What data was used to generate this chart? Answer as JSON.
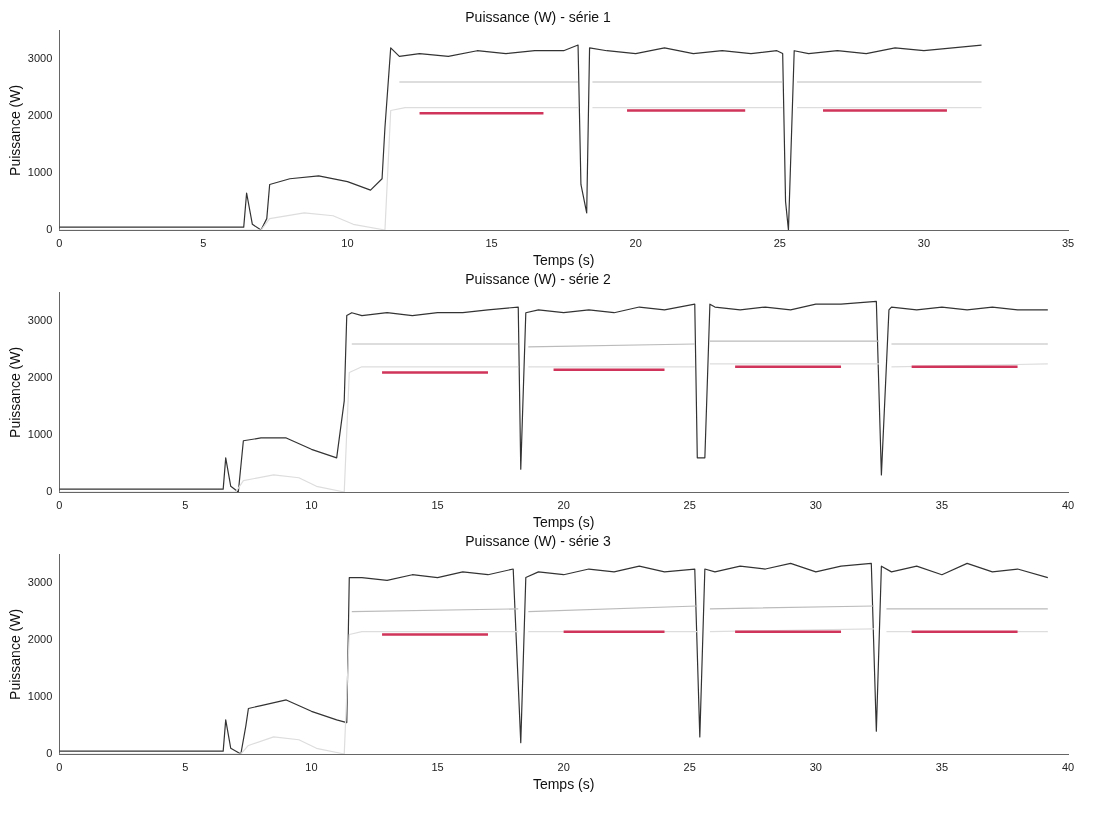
{
  "chart_data": [
    {
      "type": "line",
      "title": "Puissance (W) - série 1",
      "xlabel": "Temps (s)",
      "ylabel": "Puissance (W)",
      "xlim": [
        0,
        35
      ],
      "xticks": [
        0,
        5,
        10,
        15,
        20,
        25,
        30,
        35
      ],
      "ylim": [
        0,
        3500
      ],
      "yticks": [
        0,
        1000,
        2000,
        3000
      ],
      "grid": false,
      "legend": false,
      "marker": "none",
      "series": [
        {
          "color": "#333333",
          "x": [
            0,
            6.4,
            6.5,
            6.7,
            7.0,
            7.2,
            7.3,
            8,
            9,
            10,
            10.8,
            11.2,
            11.3,
            11.5,
            11.8,
            12.5,
            13.5,
            14.5,
            15.5,
            16.5,
            17.5,
            18.0,
            18.1,
            18.3,
            18.4,
            19,
            20,
            21,
            22,
            23,
            24,
            24.9,
            25.1,
            25.2,
            25.3,
            25.5,
            26,
            27,
            28,
            29,
            30,
            31,
            32
          ],
          "values": [
            50,
            50,
            650,
            100,
            0,
            200,
            800,
            900,
            950,
            850,
            700,
            900,
            1800,
            3200,
            3050,
            3100,
            3050,
            3150,
            3100,
            3150,
            3150,
            3250,
            800,
            300,
            3200,
            3150,
            3100,
            3200,
            3100,
            3150,
            3100,
            3150,
            3100,
            500,
            0,
            3150,
            3100,
            3150,
            3100,
            3200,
            3150,
            3200,
            3250
          ]
        },
        {
          "color": "#bbbbbb",
          "x": [
            11.8,
            18.0,
            18.2,
            18.5,
            25.1,
            25.3,
            25.6,
            32
          ],
          "values": [
            2600,
            2600,
            null,
            2600,
            2600,
            null,
            2600,
            2600
          ]
        },
        {
          "color": "#dddddd",
          "x": [
            0,
            7,
            7.3,
            8.5,
            9.5,
            10.2,
            11.3,
            11.5,
            12,
            18,
            18.2,
            18.5,
            25.1,
            25.3,
            25.6,
            32
          ],
          "values": [
            0,
            0,
            200,
            300,
            250,
            100,
            0,
            2100,
            2150,
            2150,
            null,
            2150,
            2150,
            null,
            2150,
            2150
          ]
        },
        {
          "color": "#d0345a",
          "x": [
            12.5,
            16.8,
            17,
            19.7,
            23.8,
            24,
            26.5,
            30.8
          ],
          "values": [
            2050,
            2050,
            null,
            2100,
            2100,
            null,
            2100,
            2100
          ]
        }
      ]
    },
    {
      "type": "line",
      "title": "Puissance (W) - série 2",
      "xlabel": "Temps (s)",
      "ylabel": "Puissance (W)",
      "xlim": [
        0,
        40
      ],
      "xticks": [
        0,
        5,
        10,
        15,
        20,
        25,
        30,
        35,
        40
      ],
      "ylim": [
        0,
        3500
      ],
      "yticks": [
        0,
        1000,
        2000,
        3000
      ],
      "grid": false,
      "legend": false,
      "marker": "none",
      "series": [
        {
          "color": "#333333",
          "x": [
            0,
            6.5,
            6.6,
            6.8,
            7.1,
            7.3,
            8,
            9,
            10,
            11,
            11.3,
            11.4,
            11.6,
            12,
            13,
            14,
            15,
            16,
            17,
            18.2,
            18.3,
            18.5,
            19,
            20,
            21,
            22,
            23,
            24,
            25.2,
            25.3,
            25.6,
            25.8,
            26,
            27,
            28,
            29,
            30,
            31,
            32.4,
            32.6,
            32.9,
            33,
            34,
            35,
            36,
            37,
            38,
            39.2
          ],
          "values": [
            50,
            50,
            600,
            100,
            0,
            900,
            950,
            950,
            750,
            600,
            1600,
            3100,
            3150,
            3100,
            3150,
            3100,
            3150,
            3150,
            3200,
            3250,
            400,
            3150,
            3200,
            3150,
            3200,
            3150,
            3250,
            3200,
            3300,
            600,
            600,
            3300,
            3250,
            3200,
            3250,
            3200,
            3300,
            3300,
            3350,
            300,
            3200,
            3250,
            3200,
            3250,
            3200,
            3250,
            3200,
            3200
          ]
        },
        {
          "color": "#bbbbbb",
          "x": [
            11.6,
            18.2,
            18.4,
            18.6,
            25.2,
            25.4,
            25.8,
            32.5,
            32.7,
            33,
            39.2
          ],
          "values": [
            2600,
            2600,
            null,
            2550,
            2600,
            null,
            2650,
            2650,
            null,
            2600,
            2600
          ]
        },
        {
          "color": "#dddddd",
          "x": [
            0,
            7,
            7.3,
            8.5,
            9.5,
            10.2,
            11.3,
            11.5,
            12,
            18.2,
            18.4,
            18.6,
            25.2,
            25.4,
            25.8,
            32.5,
            32.7,
            33,
            39.2
          ],
          "values": [
            0,
            0,
            200,
            300,
            250,
            100,
            0,
            2100,
            2200,
            2200,
            null,
            2200,
            2200,
            null,
            2250,
            2250,
            null,
            2200,
            2250
          ]
        },
        {
          "color": "#d0345a",
          "x": [
            12.8,
            17,
            17.2,
            19.6,
            24,
            24.2,
            26.8,
            31,
            31.2,
            33.8,
            38
          ],
          "values": [
            2100,
            2100,
            null,
            2150,
            2150,
            null,
            2200,
            2200,
            null,
            2200,
            2200
          ]
        }
      ]
    },
    {
      "type": "line",
      "title": "Puissance (W) - série 3",
      "xlabel": "Temps (s)",
      "ylabel": "Puissance (W)",
      "xlim": [
        0,
        40
      ],
      "xticks": [
        0,
        5,
        10,
        15,
        20,
        25,
        30,
        35,
        40
      ],
      "ylim": [
        0,
        3500
      ],
      "yticks": [
        0,
        1000,
        2000,
        3000
      ],
      "grid": false,
      "legend": false,
      "marker": "none",
      "series": [
        {
          "color": "#333333",
          "x": [
            0,
            6.5,
            6.6,
            6.8,
            7.2,
            7.4,
            7.5,
            8,
            9,
            10,
            11,
            11.4,
            11.5,
            12,
            13,
            14,
            15,
            16,
            17,
            18,
            18.3,
            18.5,
            19,
            20,
            21,
            22,
            23,
            24,
            25.2,
            25.4,
            25.6,
            26,
            27,
            28,
            29,
            30,
            31,
            32.2,
            32.4,
            32.6,
            33,
            34,
            35,
            36,
            37,
            38,
            39.2
          ],
          "values": [
            50,
            50,
            600,
            100,
            0,
            500,
            800,
            850,
            950,
            750,
            600,
            550,
            3100,
            3100,
            3050,
            3150,
            3100,
            3200,
            3150,
            3250,
            200,
            3100,
            3200,
            3150,
            3250,
            3200,
            3300,
            3200,
            3250,
            300,
            3250,
            3200,
            3300,
            3250,
            3350,
            3200,
            3300,
            3350,
            400,
            3300,
            3200,
            3300,
            3150,
            3350,
            3200,
            3250,
            3100
          ]
        },
        {
          "color": "#bbbbbb",
          "x": [
            11.6,
            18.2,
            18.4,
            18.6,
            25.3,
            25.5,
            25.8,
            32.3,
            32.5,
            32.8,
            39.2
          ],
          "values": [
            2500,
            2550,
            null,
            2500,
            2600,
            null,
            2550,
            2600,
            null,
            2550,
            2550
          ]
        },
        {
          "color": "#dddddd",
          "x": [
            0,
            7.2,
            7.5,
            8.5,
            9.5,
            10.2,
            11.3,
            11.5,
            12,
            18.2,
            18.4,
            18.6,
            25.3,
            25.5,
            25.8,
            32.3,
            32.5,
            32.8,
            39.2
          ],
          "values": [
            0,
            0,
            150,
            300,
            250,
            100,
            0,
            2100,
            2150,
            2150,
            null,
            2150,
            2150,
            null,
            2150,
            2200,
            null,
            2150,
            2150
          ]
        },
        {
          "color": "#d0345a",
          "x": [
            12.8,
            17,
            17.2,
            20,
            24,
            24.2,
            26.8,
            31,
            31.2,
            33.8,
            38
          ],
          "values": [
            2100,
            2100,
            null,
            2150,
            2150,
            null,
            2150,
            2150,
            null,
            2150,
            2150
          ]
        }
      ]
    }
  ]
}
